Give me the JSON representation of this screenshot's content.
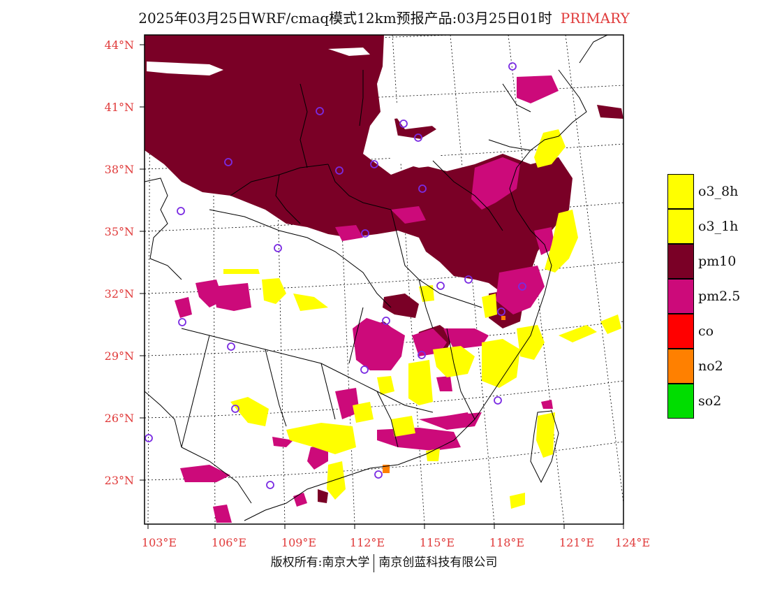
{
  "title": {
    "main": "2025年03月25日WRF/cmaq模式12km预报产品:03月25日01时",
    "tag": "PRIMARY",
    "tag_color": "#e03a3a"
  },
  "map": {
    "lat_labels": [
      "44°N",
      "41°N",
      "38°N",
      "35°N",
      "32°N",
      "29°N",
      "26°N",
      "23°N"
    ],
    "lon_labels": [
      "103°E",
      "106°E",
      "109°E",
      "112°E",
      "115°E",
      "118°E",
      "121°E",
      "124°E"
    ],
    "label_color": "#e03a3a",
    "pollution_layers": [
      {
        "pollutant": "pm10",
        "color": "#7a0026"
      },
      {
        "pollutant": "pm2.5",
        "color": "#cc0a7a"
      },
      {
        "pollutant": "o3",
        "color": "#ffff00"
      },
      {
        "pollutant": "no2",
        "color": "#ff8000"
      }
    ],
    "station_marker_color": "#7a2be2"
  },
  "legend": {
    "items": [
      {
        "label": "o3_8h",
        "color": "#ffff00"
      },
      {
        "label": "o3_1h",
        "color": "#ffff00"
      },
      {
        "label": "pm10",
        "color": "#7a0026"
      },
      {
        "label": "pm2.5",
        "color": "#cc0a7a"
      },
      {
        "label": "co",
        "color": "#ff0000"
      },
      {
        "label": "no2",
        "color": "#ff8000"
      },
      {
        "label": "so2",
        "color": "#00dd00"
      }
    ]
  },
  "footer": {
    "left": "版权所有:南京大学",
    "right": "南京创蓝科技有限公司"
  }
}
